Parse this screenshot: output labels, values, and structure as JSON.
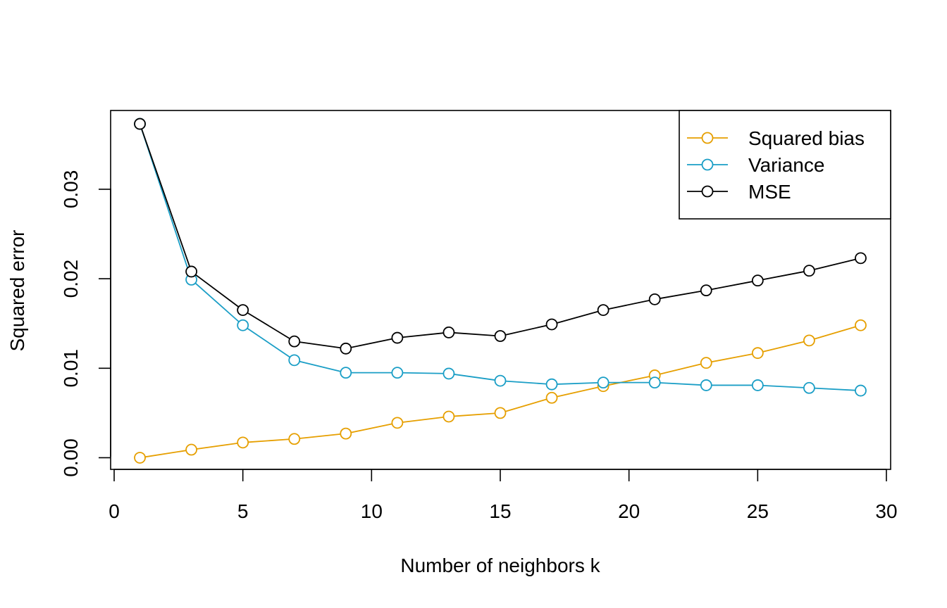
{
  "chart_data": {
    "type": "line",
    "title": "",
    "xlabel": "Number of neighbors k",
    "ylabel": "Squared error",
    "xlim": [
      0,
      30
    ],
    "ylim": [
      -0.0013,
      0.0388
    ],
    "x_ticks": [
      0,
      5,
      10,
      15,
      20,
      25,
      30
    ],
    "y_ticks": [
      0.0,
      0.01,
      0.02,
      0.03
    ],
    "x_tick_labels": [
      "0",
      "5",
      "10",
      "15",
      "20",
      "25",
      "30"
    ],
    "y_tick_labels": [
      "0.00",
      "0.01",
      "0.02",
      "0.03"
    ],
    "grid": false,
    "legend_position": "top-right",
    "x": [
      1,
      3,
      5,
      7,
      9,
      11,
      13,
      15,
      17,
      19,
      21,
      23,
      25,
      27,
      29
    ],
    "series": [
      {
        "name": "Squared bias",
        "color": "#E69F00",
        "values": [
          0.0,
          0.0009,
          0.0017,
          0.0021,
          0.0027,
          0.0039,
          0.0046,
          0.005,
          0.0067,
          0.008,
          0.0092,
          0.0106,
          0.0117,
          0.0131,
          0.0148
        ]
      },
      {
        "name": "Variance",
        "color": "#1A9EC6",
        "values": [
          0.0373,
          0.0199,
          0.0148,
          0.0109,
          0.0095,
          0.0095,
          0.0094,
          0.0086,
          0.0082,
          0.0084,
          0.0084,
          0.0081,
          0.0081,
          0.0078,
          0.0075
        ]
      },
      {
        "name": "MSE",
        "color": "#000000",
        "values": [
          0.0373,
          0.0208,
          0.0165,
          0.013,
          0.0122,
          0.0134,
          0.014,
          0.0136,
          0.0149,
          0.0165,
          0.0177,
          0.0187,
          0.0198,
          0.0209,
          0.0223
        ]
      }
    ]
  }
}
